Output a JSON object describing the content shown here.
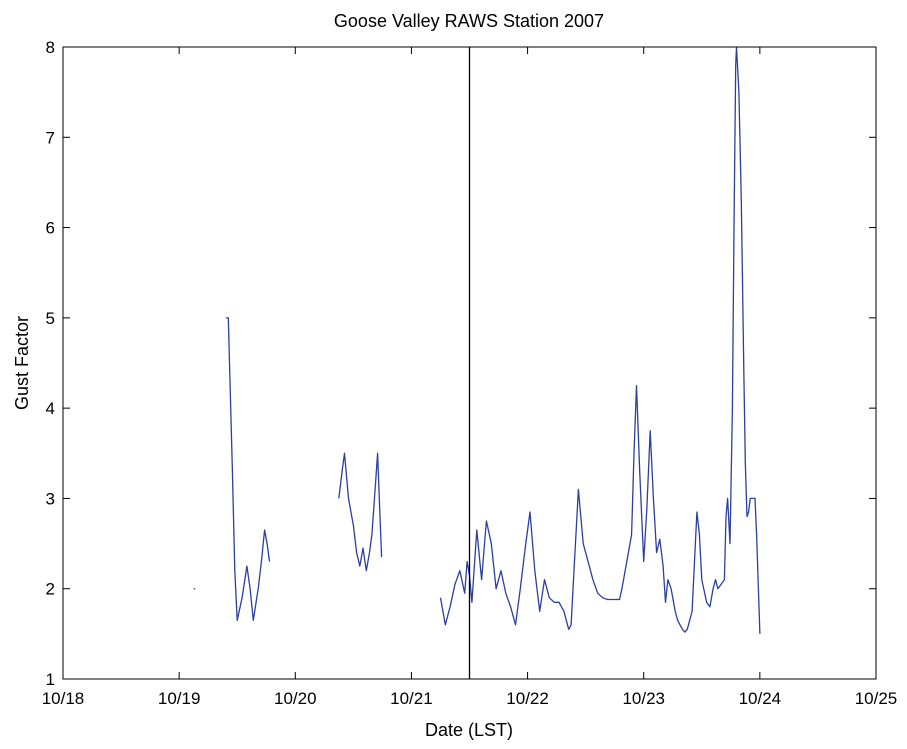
{
  "chart_data": {
    "type": "line",
    "title": "Goose Valley RAWS Station 2007",
    "xlabel": "Date (LST)",
    "ylabel": "Gust Factor",
    "xlim": [
      "10/18",
      "10/25"
    ],
    "ylim": [
      1,
      8
    ],
    "x_ticks": [
      "10/18",
      "10/19",
      "10/20",
      "10/21",
      "10/22",
      "10/23",
      "10/24",
      "10/25"
    ],
    "y_ticks": [
      "1",
      "2",
      "3",
      "4",
      "5",
      "6",
      "7",
      "8"
    ],
    "grid": false,
    "legend": "none",
    "vertical_marker": {
      "x": "10/21 12:00"
    },
    "series": [
      {
        "color": "#2c3f9e",
        "segments": [
          [
            [
              "10/19 03:00",
              2.0
            ],
            [
              "10/19 03:20",
              2.0
            ]
          ],
          [
            [
              "10/19 09:40",
              5.0
            ],
            [
              "10/19 10:10",
              5.0
            ],
            [
              "10/19 10:30",
              4.3
            ],
            [
              "10/19 11:00",
              3.3
            ],
            [
              "10/19 11:30",
              2.2
            ],
            [
              "10/19 12:00",
              1.65
            ],
            [
              "10/19 13:00",
              1.9
            ],
            [
              "10/19 14:00",
              2.25
            ],
            [
              "10/19 14:40",
              2.0
            ],
            [
              "10/19 15:20",
              1.65
            ],
            [
              "10/19 16:20",
              2.0
            ],
            [
              "10/19 17:00",
              2.3
            ],
            [
              "10/19 17:40",
              2.65
            ],
            [
              "10/19 18:10",
              2.5
            ],
            [
              "10/19 18:40",
              2.3
            ]
          ],
          [
            [
              "10/20 09:00",
              3.0
            ],
            [
              "10/20 09:40",
              3.3
            ],
            [
              "10/20 10:10",
              3.5
            ],
            [
              "10/20 11:00",
              3.0
            ],
            [
              "10/20 12:00",
              2.7
            ],
            [
              "10/20 12:40",
              2.4
            ],
            [
              "10/20 13:20",
              2.25
            ],
            [
              "10/20 14:00",
              2.45
            ],
            [
              "10/20 14:40",
              2.2
            ],
            [
              "10/20 15:20",
              2.4
            ],
            [
              "10/20 15:50",
              2.6
            ],
            [
              "10/20 16:30",
              3.1
            ],
            [
              "10/20 17:00",
              3.5
            ],
            [
              "10/20 17:30",
              2.8
            ],
            [
              "10/20 17:50",
              2.35
            ]
          ],
          [
            [
              "10/21 06:00",
              1.9
            ],
            [
              "10/21 07:00",
              1.6
            ],
            [
              "10/21 08:00",
              1.8
            ],
            [
              "10/21 09:00",
              2.05
            ],
            [
              "10/21 10:00",
              2.2
            ],
            [
              "10/21 11:00",
              1.95
            ],
            [
              "10/21 11:30",
              2.3
            ],
            [
              "10/21 12:00",
              2.15
            ],
            [
              "10/21 12:30",
              1.85
            ],
            [
              "10/21 13:30",
              2.65
            ],
            [
              "10/21 14:30",
              2.1
            ],
            [
              "10/21 15:30",
              2.75
            ],
            [
              "10/21 16:30",
              2.5
            ],
            [
              "10/21 17:30",
              2.0
            ],
            [
              "10/21 18:30",
              2.2
            ],
            [
              "10/21 19:30",
              1.95
            ],
            [
              "10/21 20:30",
              1.8
            ],
            [
              "10/21 21:30",
              1.6
            ],
            [
              "10/21 22:30",
              2.0
            ],
            [
              "10/21 23:30",
              2.45
            ],
            [
              "10/22 00:30",
              2.85
            ],
            [
              "10/22 01:30",
              2.2
            ],
            [
              "10/22 02:30",
              1.75
            ],
            [
              "10/22 03:30",
              2.1
            ],
            [
              "10/22 04:30",
              1.9
            ],
            [
              "10/22 05:30",
              1.85
            ],
            [
              "10/22 06:30",
              1.85
            ],
            [
              "10/22 07:30",
              1.75
            ],
            [
              "10/22 08:30",
              1.55
            ],
            [
              "10/22 09:00",
              1.6
            ],
            [
              "10/22 09:30",
              2.1
            ],
            [
              "10/22 10:30",
              3.1
            ],
            [
              "10/22 11:30",
              2.5
            ],
            [
              "10/22 12:30",
              2.3
            ],
            [
              "10/22 13:30",
              2.1
            ],
            [
              "10/22 14:30",
              1.95
            ],
            [
              "10/22 15:30",
              1.9
            ],
            [
              "10/22 16:30",
              1.88
            ],
            [
              "10/22 17:30",
              1.88
            ],
            [
              "10/22 18:30",
              1.88
            ],
            [
              "10/22 19:00",
              1.88
            ],
            [
              "10/22 19:30",
              2.0
            ],
            [
              "10/22 20:30",
              2.3
            ],
            [
              "10/22 21:30",
              2.6
            ],
            [
              "10/22 22:00",
              3.5
            ],
            [
              "10/22 22:30",
              4.25
            ],
            [
              "10/22 23:10",
              3.3
            ],
            [
              "10/23 00:00",
              2.3
            ],
            [
              "10/23 00:40",
              2.9
            ],
            [
              "10/23 01:20",
              3.75
            ],
            [
              "10/23 02:00",
              3.0
            ],
            [
              "10/23 02:40",
              2.4
            ],
            [
              "10/23 03:20",
              2.55
            ],
            [
              "10/23 04:00",
              2.25
            ],
            [
              "10/23 04:30",
              1.85
            ],
            [
              "10/23 05:00",
              2.1
            ],
            [
              "10/23 05:40",
              2.0
            ],
            [
              "10/23 06:30",
              1.75
            ],
            [
              "10/23 07:00",
              1.65
            ],
            [
              "10/23 08:00",
              1.55
            ],
            [
              "10/23 08:30",
              1.52
            ],
            [
              "10/23 09:00",
              1.55
            ],
            [
              "10/23 10:00",
              1.75
            ],
            [
              "10/23 10:30",
              2.3
            ],
            [
              "10/23 11:00",
              2.85
            ],
            [
              "10/23 11:30",
              2.6
            ],
            [
              "10/23 12:00",
              2.1
            ],
            [
              "10/23 13:00",
              1.85
            ],
            [
              "10/23 13:40",
              1.8
            ],
            [
              "10/23 14:20",
              2.0
            ],
            [
              "10/23 14:50",
              2.1
            ],
            [
              "10/23 15:20",
              2.0
            ],
            [
              "10/23 16:00",
              2.05
            ],
            [
              "10/23 16:40",
              2.1
            ],
            [
              "10/23 17:00",
              2.8
            ],
            [
              "10/23 17:20",
              3.0
            ],
            [
              "10/23 17:50",
              2.5
            ],
            [
              "10/23 18:20",
              4.0
            ],
            [
              "10/23 18:40",
              6.0
            ],
            [
              "10/23 19:00",
              7.8
            ],
            [
              "10/23 19:10",
              8.0
            ],
            [
              "10/23 19:40",
              7.5
            ],
            [
              "10/23 20:10",
              6.3
            ],
            [
              "10/23 20:40",
              4.5
            ],
            [
              "10/23 21:00",
              3.4
            ],
            [
              "10/23 21:20",
              2.8
            ],
            [
              "10/23 21:40",
              2.85
            ],
            [
              "10/23 22:00",
              3.0
            ],
            [
              "10/23 23:00",
              3.0
            ],
            [
              "10/23 23:20",
              2.6
            ],
            [
              "10/24 00:00",
              1.5
            ]
          ]
        ]
      }
    ]
  }
}
